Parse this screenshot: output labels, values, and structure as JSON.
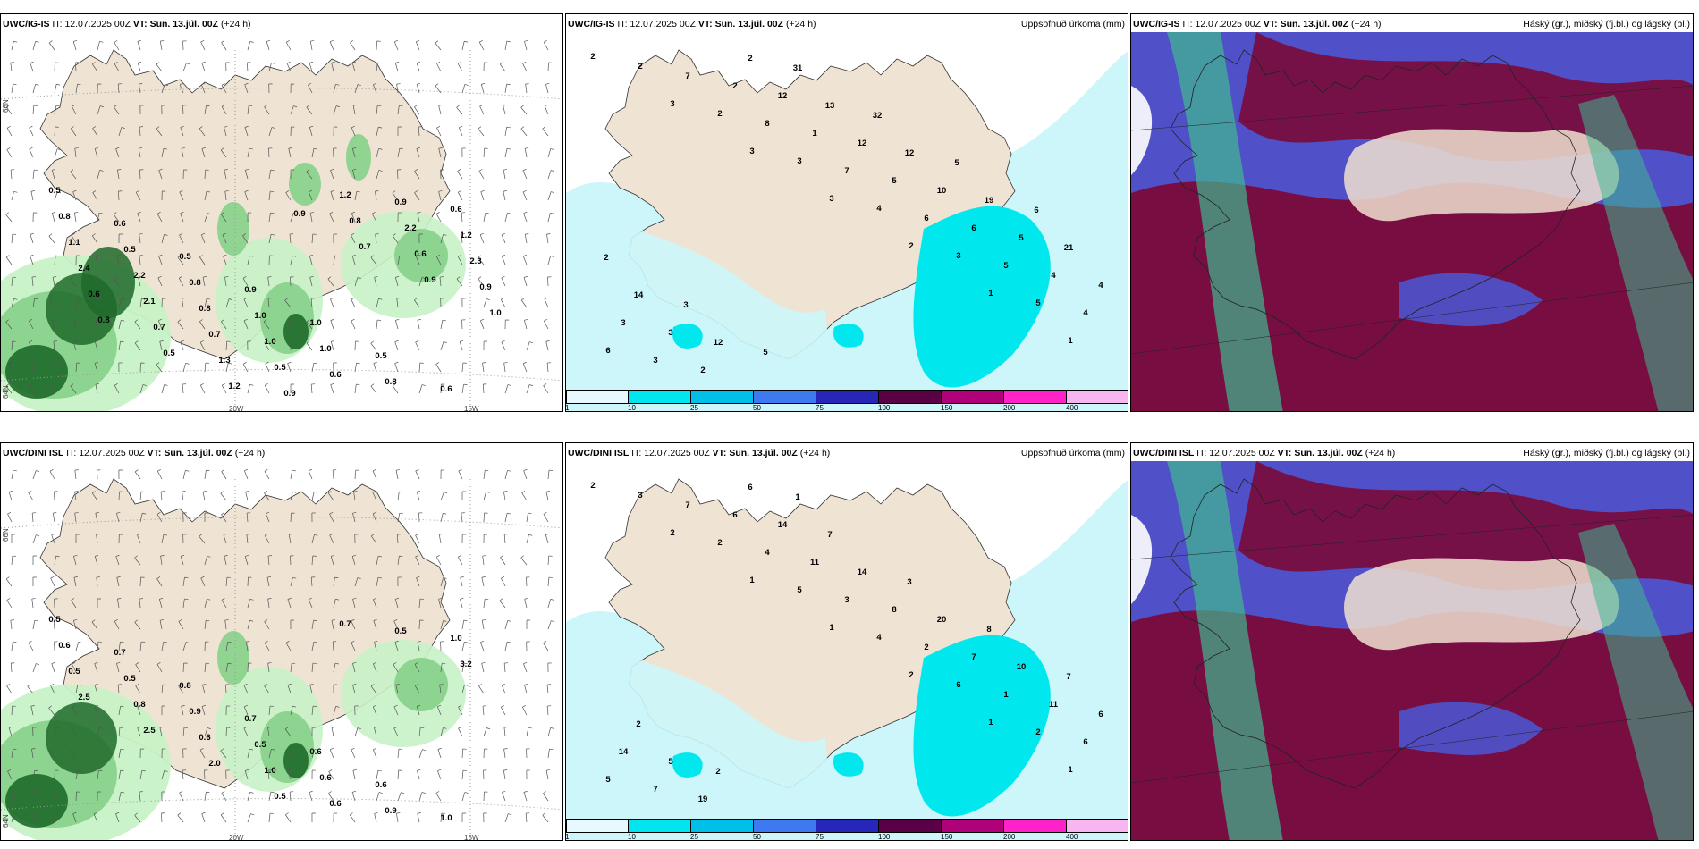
{
  "panels": [
    {
      "model": "UWC/IG-IS",
      "it_label": "IT:",
      "it_value": "12.07.2025 00Z",
      "vt_label": "VT:",
      "vt_value": "Sun. 13.júl. 00Z",
      "lead": "(+24 h)",
      "right_title": ""
    },
    {
      "model": "UWC/IG-IS",
      "it_label": "IT:",
      "it_value": "12.07.2025 00Z",
      "vt_label": "VT:",
      "vt_value": "Sun. 13.júl. 00Z",
      "lead": "(+24 h)",
      "right_title": "Uppsöfnuð úrkoma (mm)"
    },
    {
      "model": "UWC/IG-IS",
      "it_label": "IT:",
      "it_value": "12.07.2025 00Z",
      "vt_label": "VT:",
      "vt_value": "Sun. 13.júl. 00Z",
      "lead": "(+24 h)",
      "right_title": "Háský (gr.), miðský (fj.bl.) og lágský (bl.)"
    },
    {
      "model": "UWC/DINI ISL",
      "it_label": "IT:",
      "it_value": "12.07.2025 00Z",
      "vt_label": "VT:",
      "vt_value": "Sun. 13.júl. 00Z",
      "lead": "(+24 h)",
      "right_title": ""
    },
    {
      "model": "UWC/DINI ISL",
      "it_label": "IT:",
      "it_value": "12.07.2025 00Z",
      "vt_label": "VT:",
      "vt_value": "Sun. 13.júl. 00Z",
      "lead": "(+24 h)",
      "right_title": "Uppsöfnuð úrkoma (mm)"
    },
    {
      "model": "UWC/DINI ISL",
      "it_label": "IT:",
      "it_value": "12.07.2025 00Z",
      "vt_label": "VT:",
      "vt_value": "Sun. 13.júl. 00Z",
      "lead": "(+24 h)",
      "right_title": "Háský (gr.), miðský (fj.bl.) og lágský (bl.)"
    }
  ],
  "axis_labels": {
    "lat66": "66N",
    "lat64": "64N",
    "lon20": "20W",
    "lon15": "15W"
  },
  "colorbar": {
    "ticks": [
      "1",
      "10",
      "25",
      "50",
      "75",
      "100",
      "150",
      "200",
      "400"
    ],
    "colors": [
      "#e8f8ff",
      "#00e5ee",
      "#00bfe8",
      "#3d7af0",
      "#2626b8",
      "#5a0044",
      "#b0007a",
      "#ff22c8",
      "#f8b6f0"
    ]
  },
  "colors": {
    "land": "#efe3d4",
    "sea": "#ffffff",
    "precip_light": "#c8f2c6",
    "precip_mid": "#86d08a",
    "precip_dark": "#1e6a2a",
    "acc_low": "#ccf6fa",
    "acc_mid": "#00e8ee",
    "cloud_high_dark": "#7a0a3a",
    "cloud_mid": "#6060d0",
    "cloud_green": "#40b890"
  },
  "panel_labels": {
    "p0": [
      "0.5",
      "0.6",
      "0.5",
      "0.9",
      "1.0",
      "0.5",
      "0.6",
      "0.8",
      "0.5",
      "0.8",
      "1.0",
      "1.0",
      "0.8",
      "0.6",
      "1.1",
      "2.2",
      "0.8",
      "1.0",
      "0.6",
      "0.9",
      "1.2",
      "2.4",
      "2.1",
      "0.7",
      "0.5",
      "1.2",
      "2.2",
      "2.3",
      "0.6",
      "0.7",
      "1.3",
      "0.9",
      "0.8",
      "0.6",
      "0.9",
      "0.8",
      "0.5",
      "1.2",
      "0.9",
      "0.7",
      "0.9",
      "1.0"
    ],
    "p1": [
      "2",
      "3",
      "3",
      "3",
      "2",
      "1",
      "1",
      "2",
      "2",
      "3",
      "4",
      "3",
      "5",
      "6",
      "7",
      "8",
      "7",
      "6",
      "5",
      "4",
      "3",
      "2",
      "1",
      "5",
      "6",
      "4",
      "3",
      "2",
      "12",
      "12",
      "10",
      "5",
      "4",
      "3",
      "2",
      "13",
      "12",
      "19",
      "21",
      "14",
      "12",
      "31",
      "32",
      "5",
      "6",
      "2",
      "3",
      "5"
    ],
    "p3": [
      "0.5",
      "0.7",
      "0.8",
      "0.7",
      "0.6",
      "0.6",
      "1.0",
      "0.6",
      "0.5",
      "0.9",
      "0.5",
      "0.6",
      "0.9",
      "1.0",
      "0.5",
      "0.8",
      "0.6",
      "1.0",
      "0.6",
      "0.5",
      "3.2",
      "2.5",
      "2.5",
      "2.0",
      "0.5",
      "0.7"
    ],
    "p4": [
      "2",
      "2",
      "1",
      "1",
      "2",
      "1",
      "1",
      "3",
      "2",
      "5",
      "4",
      "6",
      "2",
      "5",
      "7",
      "4",
      "3",
      "2",
      "1",
      "6",
      "7",
      "6",
      "11",
      "8",
      "7",
      "11",
      "14",
      "19",
      "14",
      "14",
      "20",
      "10",
      "6",
      "5",
      "6",
      "7",
      "3",
      "8",
      "7",
      "2",
      "2",
      "1"
    ]
  }
}
